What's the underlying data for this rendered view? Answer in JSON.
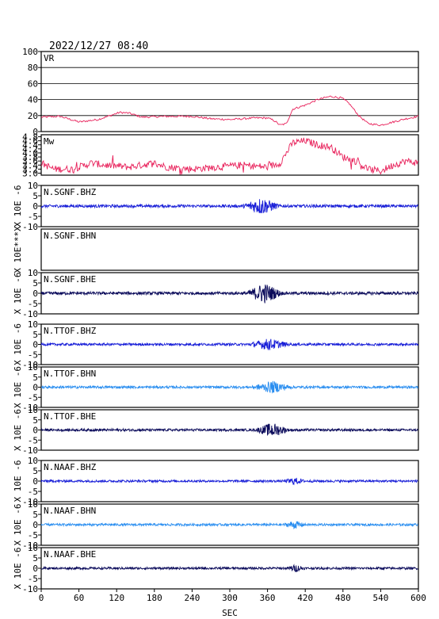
{
  "title": "2022/12/27 08:40",
  "chart_data": {
    "type": "line",
    "xlabel": "SEC",
    "xlim": [
      0,
      600
    ],
    "xticks": [
      0,
      60,
      120,
      180,
      240,
      300,
      360,
      420,
      480,
      540,
      600
    ],
    "panels": [
      {
        "id": "vr",
        "label": "VR",
        "color": "#e8205a",
        "ylim": [
          0,
          100
        ],
        "yticks": [
          0,
          20,
          40,
          60,
          80,
          100
        ],
        "grid": true,
        "keypoints": [
          [
            0,
            18
          ],
          [
            30,
            19
          ],
          [
            60,
            12
          ],
          [
            90,
            15
          ],
          [
            110,
            20
          ],
          [
            125,
            24
          ],
          [
            140,
            23
          ],
          [
            160,
            18
          ],
          [
            200,
            19
          ],
          [
            240,
            19
          ],
          [
            270,
            16
          ],
          [
            300,
            15
          ],
          [
            340,
            17
          ],
          [
            360,
            17
          ],
          [
            370,
            14
          ],
          [
            380,
            8
          ],
          [
            390,
            10
          ],
          [
            400,
            28
          ],
          [
            420,
            33
          ],
          [
            440,
            40
          ],
          [
            460,
            44
          ],
          [
            478,
            42
          ],
          [
            490,
            35
          ],
          [
            505,
            20
          ],
          [
            520,
            10
          ],
          [
            540,
            8
          ],
          [
            560,
            12
          ],
          [
            580,
            16
          ],
          [
            600,
            19
          ]
        ]
      },
      {
        "id": "mw",
        "label": "Mw",
        "color": "#e8205a",
        "ylim": [
          2.9,
          4.9
        ],
        "yticks": [
          3.0,
          3.2,
          3.4,
          3.6,
          3.8,
          4.0,
          4.2,
          4.4,
          4.6,
          4.8
        ],
        "tick_label_text": [
          "3.0",
          "3.2",
          "3.4",
          "3.6",
          "3.8",
          "4.0",
          "4.2",
          "4.4",
          "4.6",
          "4.8"
        ],
        "keypoints": [
          [
            0,
            3.5
          ],
          [
            20,
            3.2
          ],
          [
            50,
            3.2
          ],
          [
            80,
            3.5
          ],
          [
            100,
            3.4
          ],
          [
            140,
            3.3
          ],
          [
            180,
            3.5
          ],
          [
            200,
            3.3
          ],
          [
            240,
            3.2
          ],
          [
            280,
            3.3
          ],
          [
            320,
            3.4
          ],
          [
            360,
            3.3
          ],
          [
            380,
            3.5
          ],
          [
            400,
            4.5
          ],
          [
            420,
            4.6
          ],
          [
            440,
            4.4
          ],
          [
            460,
            4.3
          ],
          [
            480,
            3.8
          ],
          [
            500,
            3.6
          ],
          [
            520,
            3.2
          ],
          [
            540,
            3.1
          ],
          [
            560,
            3.4
          ],
          [
            580,
            3.6
          ],
          [
            600,
            3.5
          ]
        ]
      },
      {
        "id": "sgnf-bhz",
        "label": "N.SGNF.BHZ",
        "color": "#1a20d8",
        "ylim": [
          -10,
          10
        ],
        "yticks": [
          -10,
          -5,
          0,
          5,
          10
        ],
        "ylabel": "X 10E -6",
        "noise": 0.7,
        "bursts": [
          [
            320,
            380,
            3.8
          ]
        ]
      },
      {
        "id": "sgnf-bhn",
        "label": "N.SGNF.BHN",
        "color": "#1a20d8",
        "ylim": [
          -10,
          10
        ],
        "yticks": [],
        "ylabel": "X 10E***X",
        "empty": true
      },
      {
        "id": "sgnf-bhe",
        "label": "N.SGNF.BHE",
        "color": "#0a0a5a",
        "ylim": [
          -10,
          10
        ],
        "yticks": [
          -10,
          -5,
          0,
          5,
          10
        ],
        "ylabel": "X 10E -6",
        "noise": 0.7,
        "bursts": [
          [
            325,
            385,
            4.5
          ]
        ]
      },
      {
        "id": "ttof-bhz",
        "label": "N.TTOF.BHZ",
        "color": "#1a20d8",
        "ylim": [
          -10,
          10
        ],
        "yticks": [
          -10,
          -5,
          0,
          5,
          10
        ],
        "ylabel": "X 10E -6",
        "noise": 0.6,
        "bursts": [
          [
            330,
            395,
            2.5
          ]
        ]
      },
      {
        "id": "ttof-bhn",
        "label": "N.TTOF.BHN",
        "color": "#2a8ef0",
        "ylim": [
          -10,
          10
        ],
        "yticks": [
          -10,
          -5,
          0,
          5,
          10
        ],
        "ylabel": "X 10E -6",
        "noise": 0.6,
        "bursts": [
          [
            335,
            400,
            2.6
          ]
        ]
      },
      {
        "id": "ttof-bhe",
        "label": "N.TTOF.BHE",
        "color": "#0a0a5a",
        "ylim": [
          -10,
          10
        ],
        "yticks": [
          -10,
          -5,
          0,
          5,
          10
        ],
        "ylabel": "X 10E -6",
        "noise": 0.6,
        "bursts": [
          [
            340,
            395,
            3.2
          ]
        ]
      },
      {
        "id": "naaf-bhz",
        "label": "N.NAAF.BHZ",
        "color": "#1a20d8",
        "ylim": [
          -10,
          10
        ],
        "yticks": [
          -10,
          -5,
          0,
          5,
          10
        ],
        "ylabel": "X 10E -6",
        "noise": 0.55,
        "bursts": [
          [
            385,
            420,
            1.4
          ]
        ]
      },
      {
        "id": "naaf-bhn",
        "label": "N.NAAF.BHN",
        "color": "#2a8ef0",
        "ylim": [
          -10,
          10
        ],
        "yticks": [
          -10,
          -5,
          0,
          5,
          10
        ],
        "ylabel": "X 10E -6",
        "noise": 0.55,
        "bursts": [
          [
            385,
            420,
            1.6
          ]
        ]
      },
      {
        "id": "naaf-bhe",
        "label": "N.NAAF.BHE",
        "color": "#0a0a5a",
        "ylim": [
          -10,
          10
        ],
        "yticks": [
          -10,
          -5,
          0,
          5,
          10
        ],
        "ylabel": "X 10E -6",
        "noise": 0.55,
        "bursts": [
          [
            390,
            420,
            1.4
          ]
        ]
      }
    ]
  }
}
